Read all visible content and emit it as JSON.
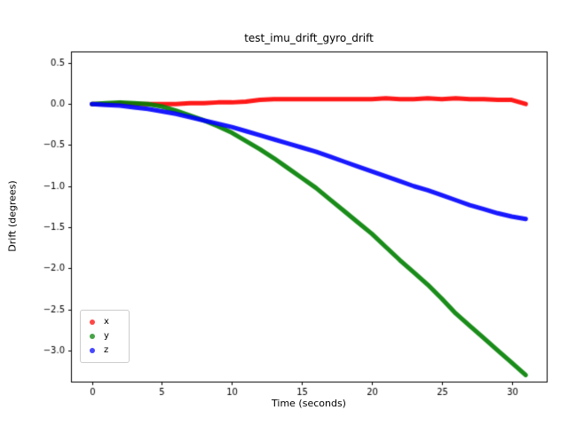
{
  "figure": {
    "background": "#ffffff"
  },
  "chart_data": {
    "type": "scatter",
    "title": "test_imu_drift_gyro_drift",
    "xlabel": "Time (seconds)",
    "ylabel": "Drift (degrees)",
    "xlim": [
      -1.5,
      32.5
    ],
    "ylim": [
      -3.38,
      0.64
    ],
    "grid": false,
    "legend_position": "lower left",
    "xtick_values": [
      0,
      5,
      10,
      15,
      20,
      25,
      30
    ],
    "xtick_labels": [
      "0",
      "5",
      "10",
      "15",
      "20",
      "25",
      "30"
    ],
    "ytick_values": [
      0.5,
      0.0,
      -0.5,
      -1.0,
      -1.5,
      -2.0,
      -2.5,
      -3.0
    ],
    "ytick_labels": [
      "0.5",
      "0.0",
      "−0.5",
      "−1.0",
      "−1.5",
      "−2.0",
      "−2.5",
      "−3.0"
    ],
    "x": [
      0,
      1,
      2,
      3,
      4,
      5,
      6,
      7,
      8,
      9,
      10,
      11,
      12,
      13,
      14,
      15,
      16,
      17,
      18,
      19,
      20,
      21,
      22,
      23,
      24,
      25,
      26,
      27,
      28,
      29,
      30,
      31
    ],
    "series": [
      {
        "name": "x",
        "color": "#ff0000",
        "alpha": 0.9,
        "linewidth": 5,
        "values": [
          0.0,
          0.0,
          0.01,
          0.0,
          0.0,
          0.0,
          0.0,
          0.01,
          0.01,
          0.02,
          0.02,
          0.03,
          0.05,
          0.06,
          0.06,
          0.06,
          0.06,
          0.06,
          0.06,
          0.06,
          0.06,
          0.07,
          0.06,
          0.06,
          0.07,
          0.06,
          0.07,
          0.06,
          0.06,
          0.05,
          0.05,
          0.0
        ]
      },
      {
        "name": "y",
        "color": "#008000",
        "alpha": 0.9,
        "linewidth": 5,
        "values": [
          0.0,
          0.01,
          0.02,
          0.01,
          0.0,
          -0.03,
          -0.08,
          -0.14,
          -0.2,
          -0.27,
          -0.35,
          -0.45,
          -0.55,
          -0.66,
          -0.78,
          -0.9,
          -1.02,
          -1.16,
          -1.3,
          -1.44,
          -1.58,
          -1.74,
          -1.9,
          -2.05,
          -2.2,
          -2.37,
          -2.55,
          -2.7,
          -2.85,
          -3.0,
          -3.15,
          -3.3
        ]
      },
      {
        "name": "z",
        "color": "#0000ff",
        "alpha": 0.9,
        "linewidth": 5,
        "values": [
          0.0,
          -0.01,
          -0.02,
          -0.04,
          -0.06,
          -0.09,
          -0.12,
          -0.16,
          -0.2,
          -0.24,
          -0.28,
          -0.33,
          -0.38,
          -0.43,
          -0.48,
          -0.53,
          -0.58,
          -0.64,
          -0.7,
          -0.76,
          -0.82,
          -0.88,
          -0.94,
          -1.0,
          -1.05,
          -1.11,
          -1.17,
          -1.23,
          -1.28,
          -1.33,
          -1.37,
          -1.4
        ]
      }
    ]
  }
}
